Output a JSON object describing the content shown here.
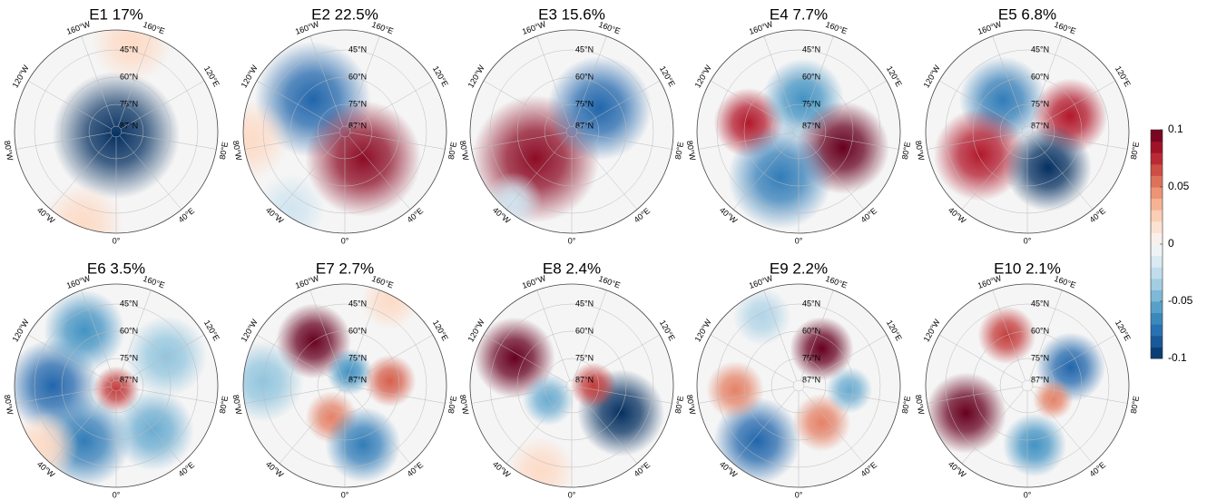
{
  "panels": [
    {
      "title": "E1 17%",
      "anomalies": [
        {
          "lon": 0,
          "lat": 88,
          "value": -0.1,
          "extent": 22
        },
        {
          "lon": 170,
          "lat": 40,
          "value": 0.02,
          "extent": 14
        },
        {
          "lon": -20,
          "lat": 36,
          "value": 0.02,
          "extent": 14
        }
      ]
    },
    {
      "title": "E2 22.5%",
      "anomalies": [
        {
          "lon": -135,
          "lat": 65,
          "value": -0.08,
          "extent": 20
        },
        {
          "lon": 34,
          "lat": 72,
          "value": 0.09,
          "extent": 20
        },
        {
          "lon": -85,
          "lat": 37,
          "value": 0.02,
          "extent": 14
        },
        {
          "lon": -35,
          "lat": 38,
          "value": -0.02,
          "extent": 12
        }
      ]
    },
    {
      "title": "E3 15.6%",
      "anomalies": [
        {
          "lon": -53,
          "lat": 65,
          "value": 0.09,
          "extent": 22
        },
        {
          "lon": 130,
          "lat": 70,
          "value": -0.08,
          "extent": 18
        },
        {
          "lon": -40,
          "lat": 40,
          "value": -0.02,
          "extent": 10
        }
      ]
    },
    {
      "title": "E4 7.7%",
      "anomalies": [
        {
          "lon": -100,
          "lat": 62,
          "value": 0.08,
          "extent": 12
        },
        {
          "lon": 172,
          "lat": 72,
          "value": -0.06,
          "extent": 14
        },
        {
          "lon": 70,
          "lat": 64,
          "value": 0.1,
          "extent": 16
        },
        {
          "lon": -22,
          "lat": 63,
          "value": -0.07,
          "extent": 18
        }
      ]
    },
    {
      "title": "E5 6.8%",
      "anomalies": [
        {
          "lon": -142,
          "lat": 68,
          "value": -0.07,
          "extent": 15
        },
        {
          "lon": 110,
          "lat": 65,
          "value": 0.08,
          "extent": 13
        },
        {
          "lon": -64,
          "lat": 61,
          "value": 0.08,
          "extent": 16
        },
        {
          "lon": 30,
          "lat": 67,
          "value": -0.1,
          "extent": 15
        }
      ]
    },
    {
      "title": "E6 3.5%",
      "anomalies": [
        {
          "lon": -90,
          "lat": 55,
          "value": -0.08,
          "extent": 16
        },
        {
          "lon": -150,
          "lat": 55,
          "value": -0.06,
          "extent": 14
        },
        {
          "lon": -30,
          "lat": 55,
          "value": -0.07,
          "extent": 16
        },
        {
          "lon": 40,
          "lat": 58,
          "value": -0.05,
          "extent": 14
        },
        {
          "lon": 120,
          "lat": 58,
          "value": -0.04,
          "extent": 14
        },
        {
          "lon": 0,
          "lat": 88,
          "value": 0.07,
          "extent": 8
        },
        {
          "lon": -50,
          "lat": 38,
          "value": 0.02,
          "extent": 12
        }
      ]
    },
    {
      "title": "E7 2.7%",
      "anomalies": [
        {
          "lon": -145,
          "lat": 60,
          "value": 0.1,
          "extent": 13
        },
        {
          "lon": 162,
          "lat": 82,
          "value": -0.06,
          "extent": 8
        },
        {
          "lon": 96,
          "lat": 65,
          "value": 0.06,
          "extent": 9
        },
        {
          "lon": -23,
          "lat": 71,
          "value": 0.05,
          "extent": 9
        },
        {
          "lon": 17,
          "lat": 56,
          "value": -0.07,
          "extent": 13
        },
        {
          "lon": -93,
          "lat": 45,
          "value": -0.04,
          "extent": 14
        },
        {
          "lon": 152,
          "lat": 37,
          "value": 0.02,
          "extent": 10
        }
      ]
    },
    {
      "title": "E8 2.4%",
      "anomalies": [
        {
          "lon": -116,
          "lat": 55,
          "value": 0.1,
          "extent": 14
        },
        {
          "lon": 61,
          "lat": 59,
          "value": -0.1,
          "extent": 15
        },
        {
          "lon": 90,
          "lat": 78,
          "value": 0.07,
          "extent": 8
        },
        {
          "lon": -59,
          "lat": 75,
          "value": -0.05,
          "extent": 9
        },
        {
          "lon": -20,
          "lat": 40,
          "value": 0.02,
          "extent": 12
        }
      ]
    },
    {
      "title": "E9 2.2%",
      "anomalies": [
        {
          "lon": 148,
          "lat": 66,
          "value": 0.1,
          "extent": 11
        },
        {
          "lon": -37,
          "lat": 52,
          "value": -0.08,
          "extent": 15
        },
        {
          "lon": -86,
          "lat": 55,
          "value": 0.05,
          "extent": 10
        },
        {
          "lon": 32,
          "lat": 66,
          "value": 0.05,
          "extent": 10
        },
        {
          "lon": 85,
          "lat": 62,
          "value": -0.05,
          "extent": 8
        },
        {
          "lon": -152,
          "lat": 47,
          "value": -0.03,
          "extent": 10
        }
      ]
    },
    {
      "title": "E10 2.1%",
      "anomalies": [
        {
          "lon": -158,
          "lat": 60,
          "value": 0.07,
          "extent": 10
        },
        {
          "lon": 113,
          "lat": 64,
          "value": -0.08,
          "extent": 12
        },
        {
          "lon": -66,
          "lat": 53,
          "value": 0.1,
          "extent": 14
        },
        {
          "lon": 7,
          "lat": 57,
          "value": -0.06,
          "extent": 11
        },
        {
          "lon": 62,
          "lat": 74,
          "value": 0.05,
          "extent": 7
        }
      ]
    }
  ],
  "lat_labels": [
    {
      "value": 45,
      "label": "45°N"
    },
    {
      "value": 60,
      "label": "60°N"
    },
    {
      "value": 75,
      "label": "75°N"
    },
    {
      "value": 87,
      "label": "87°N"
    }
  ],
  "lon_labels": [
    {
      "value": 0,
      "label": "0°"
    },
    {
      "value": 40,
      "label": "40°E"
    },
    {
      "value": 80,
      "label": "80°E"
    },
    {
      "value": 120,
      "label": "120°E"
    },
    {
      "value": 160,
      "label": "160°E"
    },
    {
      "value": -160,
      "label": "160°W"
    },
    {
      "value": -120,
      "label": "120°W"
    },
    {
      "value": -80,
      "label": "80°W"
    },
    {
      "value": -40,
      "label": "40°W"
    }
  ],
  "colorbar": {
    "lim": [
      -0.1,
      0.1
    ],
    "ticks": [
      -0.1,
      -0.05,
      0,
      0.05,
      0.1
    ]
  }
}
